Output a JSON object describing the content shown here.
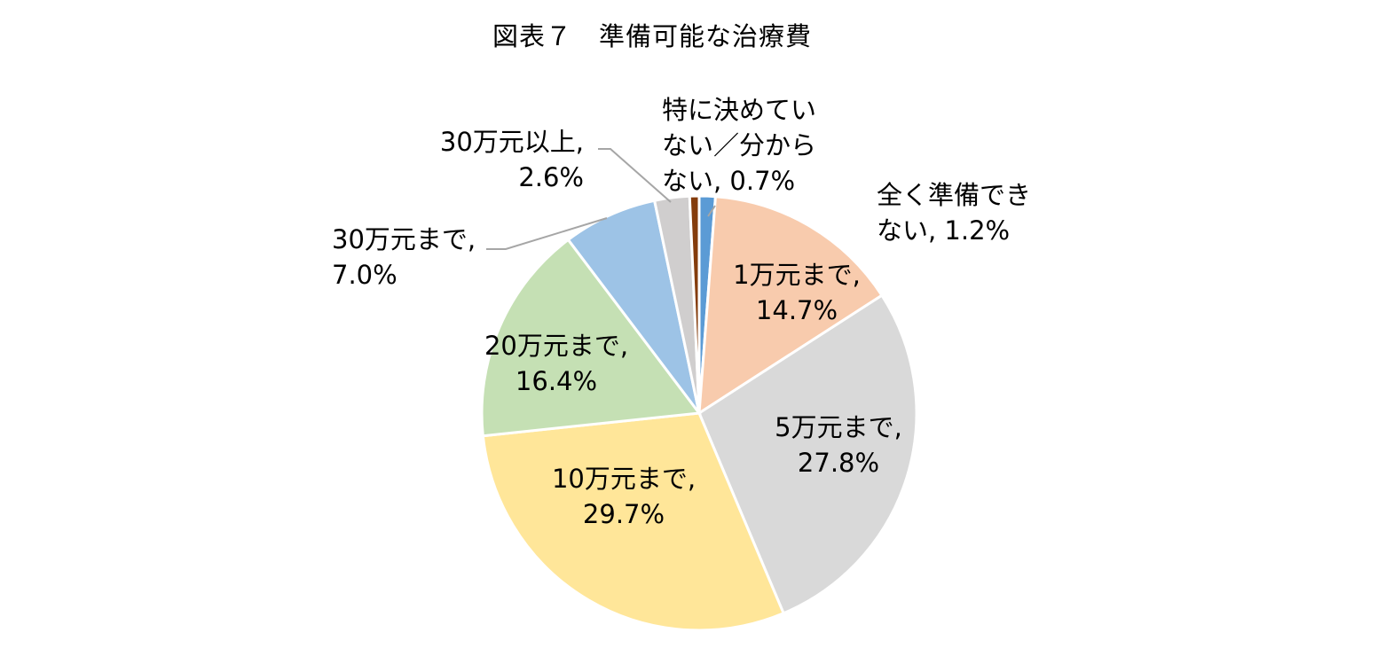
{
  "chart_data": {
    "type": "pie",
    "title": "図表７　準備可能な治療費",
    "slices": [
      {
        "label": "全く準備できない",
        "value": 1.2,
        "pct": "1.2%",
        "color": "#5b9bd5",
        "text": [
          "全く準備でき",
          "ない, 1.2%"
        ]
      },
      {
        "label": "1万元まで",
        "value": 14.7,
        "pct": "14.7%",
        "color": "#f8cbad",
        "text": [
          "1万元まで,",
          "14.7%"
        ]
      },
      {
        "label": "5万元まで",
        "value": 27.8,
        "pct": "27.8%",
        "color": "#d9d9d9",
        "text": [
          "5万元まで,",
          "27.8%"
        ]
      },
      {
        "label": "10万元まで",
        "value": 29.7,
        "pct": "29.7%",
        "color": "#ffe699",
        "text": [
          "10万元まで,",
          "29.7%"
        ]
      },
      {
        "label": "20万元まで",
        "value": 16.4,
        "pct": "16.4%",
        "color": "#c5e0b4",
        "text": [
          "20万元まで,",
          "16.4%"
        ]
      },
      {
        "label": "30万元まで",
        "value": 7.0,
        "pct": "7.0%",
        "color": "#9dc3e6",
        "text": [
          "30万元まで,",
          "7.0%"
        ]
      },
      {
        "label": "30万元以上",
        "value": 2.6,
        "pct": "2.6%",
        "color": "#d0cece",
        "text": [
          "30万元以上,",
          "2.6%"
        ]
      },
      {
        "label": "特に決めていない／分からない",
        "value": 0.7,
        "pct": "0.7%",
        "color": "#843c0c",
        "text": [
          "特に決めてい",
          "ない／分から",
          "ない, 0.7%"
        ]
      }
    ]
  }
}
